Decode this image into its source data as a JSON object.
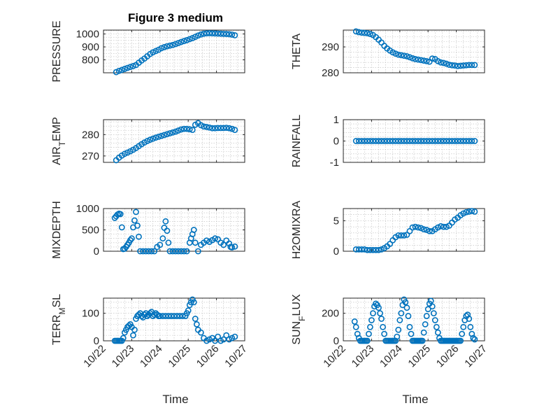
{
  "figure": {
    "title": "Figure 3 medium",
    "marker_color": "#0072BD",
    "grid": true,
    "marker": "open circle"
  },
  "chart_data": [
    {
      "type": "scatter",
      "title": "Figure 3 medium",
      "ylabel": "PRESSURE",
      "xlabel": "",
      "xlim": [
        0,
        5
      ],
      "ylim": [
        700,
        1030
      ],
      "yticks": [
        800,
        900,
        1000
      ],
      "minor_y": [
        725,
        750,
        775,
        825,
        850,
        875,
        925,
        950,
        975,
        1025
      ],
      "xticks": [
        0,
        1,
        2,
        3,
        4,
        5
      ],
      "xticklabels": [],
      "x": [
        0.45,
        0.55,
        0.65,
        0.75,
        0.85,
        0.95,
        1.05,
        1.15,
        1.25,
        1.35,
        1.45,
        1.55,
        1.65,
        1.75,
        1.85,
        1.95,
        2.05,
        2.15,
        2.25,
        2.35,
        2.45,
        2.55,
        2.65,
        2.75,
        2.85,
        2.95,
        3.05,
        3.15,
        3.25,
        3.35,
        3.45,
        3.55,
        3.65,
        3.75,
        3.85,
        3.95,
        4.05,
        4.15,
        4.25,
        4.35,
        4.45,
        4.55,
        4.65
      ],
      "y": [
        705,
        715,
        722,
        730,
        738,
        745,
        752,
        760,
        778,
        795,
        810,
        828,
        845,
        858,
        868,
        878,
        890,
        898,
        905,
        910,
        915,
        922,
        930,
        938,
        945,
        952,
        960,
        968,
        978,
        988,
        996,
        1002,
        1005,
        1006,
        1005,
        1004,
        1003,
        1002,
        1001,
        1000,
        998,
        995,
        990
      ]
    },
    {
      "type": "scatter",
      "ylabel": "THETA",
      "xlabel": "",
      "xlim": [
        0,
        5
      ],
      "ylim": [
        280,
        296.5
      ],
      "yticks": [
        280,
        290
      ],
      "minor_y": [
        282,
        284,
        286,
        288,
        292,
        294,
        296
      ],
      "xticks": [
        0,
        1,
        2,
        3,
        4,
        5
      ],
      "xticklabels": [],
      "x": [
        0.45,
        0.55,
        0.65,
        0.75,
        0.85,
        0.95,
        1.05,
        1.15,
        1.25,
        1.35,
        1.45,
        1.55,
        1.65,
        1.75,
        1.85,
        1.95,
        2.05,
        2.15,
        2.25,
        2.35,
        2.45,
        2.55,
        2.65,
        2.75,
        2.85,
        2.95,
        3.05,
        3.15,
        3.25,
        3.35,
        3.45,
        3.55,
        3.65,
        3.75,
        3.85,
        3.95,
        4.05,
        4.15,
        4.25,
        4.35,
        4.45,
        4.55,
        4.65
      ],
      "y": [
        296.0,
        295.7,
        295.5,
        295.4,
        295.3,
        295.0,
        294.6,
        293.8,
        292.8,
        291.7,
        290.4,
        289.4,
        288.6,
        287.9,
        287.4,
        287.0,
        286.8,
        286.6,
        286.4,
        286.0,
        285.6,
        285.3,
        285.1,
        284.9,
        284.7,
        284.5,
        284.3,
        285.5,
        285.3,
        284.5,
        284.0,
        283.8,
        283.5,
        283.1,
        282.9,
        282.8,
        282.6,
        282.7,
        282.8,
        282.9,
        283.0,
        283.0,
        283.0
      ]
    },
    {
      "type": "scatter",
      "ylabel": "AIR_TEMP",
      "ylabel_main": "AIR",
      "ylabel_sub": "T",
      "ylabel_rest": "EMP",
      "xlabel": "",
      "xlim": [
        0,
        5
      ],
      "ylim": [
        267,
        287
      ],
      "yticks": [
        270,
        280
      ],
      "minor_y": [
        272,
        274,
        276,
        278,
        282,
        284,
        286
      ],
      "xticks": [
        0,
        1,
        2,
        3,
        4,
        5
      ],
      "xticklabels": [],
      "x": [
        0.45,
        0.55,
        0.65,
        0.75,
        0.85,
        0.95,
        1.05,
        1.15,
        1.25,
        1.35,
        1.45,
        1.55,
        1.65,
        1.75,
        1.85,
        1.95,
        2.05,
        2.15,
        2.25,
        2.35,
        2.45,
        2.55,
        2.65,
        2.75,
        2.85,
        2.95,
        3.05,
        3.15,
        3.25,
        3.35,
        3.45,
        3.55,
        3.65,
        3.75,
        3.85,
        3.95,
        4.05,
        4.15,
        4.25,
        4.35,
        4.45,
        4.55,
        4.65
      ],
      "y": [
        268.0,
        269.2,
        270.2,
        271.0,
        271.6,
        272.2,
        272.9,
        273.7,
        274.6,
        275.5,
        276.3,
        277.0,
        277.6,
        278.1,
        278.6,
        279.0,
        279.4,
        279.8,
        280.2,
        280.6,
        281.0,
        281.4,
        281.9,
        282.4,
        282.7,
        282.7,
        282.5,
        282.2,
        284.6,
        285.4,
        284.4,
        283.8,
        283.6,
        283.3,
        283.0,
        283.0,
        283.1,
        283.1,
        283.1,
        283.2,
        283.0,
        282.7,
        282.2
      ]
    },
    {
      "type": "scatter",
      "ylabel": "RAINFALL",
      "xlabel": "",
      "xlim": [
        0,
        5
      ],
      "ylim": [
        -1,
        1
      ],
      "yticks": [
        -1,
        0,
        1
      ],
      "minor_y": [
        -0.8,
        -0.6,
        -0.4,
        -0.2,
        0.2,
        0.4,
        0.6,
        0.8
      ],
      "xticks": [
        0,
        1,
        2,
        3,
        4,
        5
      ],
      "xticklabels": [],
      "x": [
        0.45,
        0.55,
        0.65,
        0.75,
        0.85,
        0.95,
        1.05,
        1.15,
        1.25,
        1.35,
        1.45,
        1.55,
        1.65,
        1.75,
        1.85,
        1.95,
        2.05,
        2.15,
        2.25,
        2.35,
        2.45,
        2.55,
        2.65,
        2.75,
        2.85,
        2.95,
        3.05,
        3.15,
        3.25,
        3.35,
        3.45,
        3.55,
        3.65,
        3.75,
        3.85,
        3.95,
        4.05,
        4.15,
        4.25,
        4.35,
        4.45,
        4.55,
        4.65
      ],
      "y": [
        0,
        0,
        0,
        0,
        0,
        0,
        0,
        0,
        0,
        0,
        0,
        0,
        0,
        0,
        0,
        0,
        0,
        0,
        0,
        0,
        0,
        0,
        0,
        0,
        0,
        0,
        0,
        0,
        0,
        0,
        0,
        0,
        0,
        0,
        0,
        0,
        0,
        0,
        0,
        0,
        0,
        0,
        0
      ]
    },
    {
      "type": "scatter",
      "ylabel": "MIXDEPTH",
      "xlabel": "",
      "xlim": [
        0,
        5
      ],
      "ylim": [
        0,
        1000
      ],
      "yticks": [
        0,
        500,
        1000
      ],
      "minor_y": [
        100,
        200,
        300,
        400,
        600,
        700,
        800,
        900
      ],
      "xticks": [
        0,
        1,
        2,
        3,
        4,
        5
      ],
      "xticklabels": [],
      "x": [
        0.4,
        0.45,
        0.5,
        0.55,
        0.6,
        0.65,
        0.7,
        0.75,
        0.8,
        0.85,
        0.9,
        0.95,
        1.0,
        1.05,
        1.1,
        1.15,
        1.2,
        1.25,
        1.3,
        1.4,
        1.5,
        1.6,
        1.7,
        1.8,
        1.9,
        2.0,
        2.1,
        2.15,
        2.2,
        2.25,
        2.3,
        2.35,
        2.45,
        2.55,
        2.65,
        2.75,
        2.85,
        2.95,
        3.05,
        3.1,
        3.15,
        3.2,
        3.25,
        3.35,
        3.45,
        3.55,
        3.65,
        3.75,
        3.85,
        3.95,
        4.05,
        4.15,
        4.25,
        4.35,
        4.45,
        4.5,
        4.55,
        4.65
      ],
      "y": [
        780,
        820,
        860,
        880,
        870,
        560,
        50,
        60,
        100,
        150,
        200,
        260,
        300,
        560,
        720,
        920,
        600,
        340,
        0,
        0,
        0,
        0,
        0,
        0,
        100,
        150,
        300,
        550,
        700,
        480,
        200,
        0,
        0,
        0,
        0,
        0,
        0,
        0,
        200,
        300,
        400,
        500,
        200,
        0,
        150,
        200,
        250,
        220,
        260,
        300,
        280,
        200,
        150,
        250,
        180,
        100,
        90,
        110
      ]
    },
    {
      "type": "scatter",
      "ylabel": "H2OMIXRA",
      "xlabel": "",
      "xlim": [
        0,
        5
      ],
      "ylim": [
        0,
        7
      ],
      "yticks": [
        0,
        5
      ],
      "minor_y": [
        1,
        2,
        3,
        4,
        6
      ],
      "xticks": [
        0,
        1,
        2,
        3,
        4,
        5
      ],
      "xticklabels": [],
      "x": [
        0.45,
        0.55,
        0.65,
        0.75,
        0.85,
        0.95,
        1.05,
        1.15,
        1.25,
        1.35,
        1.45,
        1.55,
        1.65,
        1.75,
        1.85,
        1.95,
        2.05,
        2.15,
        2.25,
        2.35,
        2.45,
        2.55,
        2.65,
        2.75,
        2.85,
        2.95,
        3.05,
        3.15,
        3.25,
        3.35,
        3.45,
        3.55,
        3.65,
        3.75,
        3.85,
        3.95,
        4.05,
        4.15,
        4.25,
        4.35,
        4.45,
        4.55,
        4.65
      ],
      "y": [
        0.3,
        0.3,
        0.3,
        0.3,
        0.2,
        0.2,
        0.2,
        0.2,
        0.2,
        0.3,
        0.5,
        0.8,
        1.2,
        1.8,
        2.3,
        2.6,
        2.6,
        2.6,
        2.7,
        3.3,
        3.9,
        4.0,
        3.9,
        3.8,
        3.6,
        3.5,
        3.3,
        3.3,
        3.6,
        3.9,
        4.1,
        4.0,
        4.0,
        4.2,
        4.7,
        5.2,
        5.5,
        5.9,
        6.2,
        6.4,
        6.5,
        6.6,
        6.5
      ]
    },
    {
      "type": "scatter",
      "ylabel": "TERR_MSL",
      "ylabel_main": "TERR",
      "ylabel_sub": "M",
      "ylabel_rest": "SL",
      "xlabel": "Time",
      "xlim": [
        0,
        5
      ],
      "ylim": [
        0,
        155
      ],
      "yticks": [
        0,
        100
      ],
      "minor_y": [
        20,
        40,
        60,
        80,
        120,
        140
      ],
      "xticks": [
        0,
        1,
        2,
        3,
        4,
        5
      ],
      "xticklabels": [
        "10/22",
        "10/23",
        "10/24",
        "10/25",
        "10/26",
        "10/27"
      ],
      "x": [
        0.4,
        0.45,
        0.5,
        0.55,
        0.6,
        0.65,
        0.7,
        0.75,
        0.8,
        0.85,
        0.9,
        0.95,
        1.0,
        1.05,
        1.1,
        1.15,
        1.2,
        1.25,
        1.3,
        1.35,
        1.4,
        1.45,
        1.5,
        1.55,
        1.6,
        1.65,
        1.7,
        1.75,
        1.8,
        1.85,
        1.9,
        1.95,
        2.0,
        2.1,
        2.2,
        2.3,
        2.4,
        2.5,
        2.6,
        2.7,
        2.8,
        2.9,
        2.95,
        3.0,
        3.05,
        3.1,
        3.15,
        3.2,
        3.25,
        3.3,
        3.35,
        3.45,
        3.55,
        3.65,
        3.75,
        3.85,
        3.95,
        4.05,
        4.15,
        4.25,
        4.35,
        4.45,
        4.55,
        4.65
      ],
      "y": [
        0,
        0,
        0,
        0,
        0,
        0,
        10,
        30,
        40,
        50,
        55,
        60,
        50,
        20,
        40,
        80,
        90,
        95,
        100,
        90,
        85,
        95,
        100,
        90,
        95,
        100,
        105,
        90,
        95,
        100,
        95,
        90,
        90,
        90,
        90,
        90,
        90,
        90,
        90,
        90,
        90,
        90,
        100,
        110,
        130,
        140,
        150,
        140,
        80,
        60,
        40,
        30,
        10,
        0,
        5,
        10,
        0,
        15,
        0,
        5,
        20,
        5,
        10,
        15
      ]
    },
    {
      "type": "scatter",
      "ylabel": "SUN_FLUX",
      "ylabel_main": "SUN",
      "ylabel_sub": "F",
      "ylabel_rest": "LUX",
      "xlabel": "Time",
      "xlim": [
        0,
        5
      ],
      "ylim": [
        0,
        310
      ],
      "yticks": [
        0,
        200
      ],
      "minor_y": [
        40,
        80,
        120,
        160,
        240,
        280
      ],
      "xticks": [
        0,
        1,
        2,
        3,
        4,
        5
      ],
      "xticklabels": [
        "10/22",
        "10/23",
        "10/24",
        "10/25",
        "10/26",
        "10/27"
      ],
      "x": [
        0.4,
        0.45,
        0.5,
        0.55,
        0.6,
        0.65,
        0.7,
        0.75,
        0.8,
        0.85,
        0.9,
        0.95,
        1.0,
        1.05,
        1.1,
        1.15,
        1.2,
        1.25,
        1.3,
        1.35,
        1.4,
        1.45,
        1.5,
        1.55,
        1.6,
        1.65,
        1.7,
        1.75,
        1.8,
        1.85,
        1.9,
        1.95,
        2.0,
        2.05,
        2.1,
        2.15,
        2.2,
        2.25,
        2.3,
        2.35,
        2.4,
        2.45,
        2.5,
        2.55,
        2.6,
        2.65,
        2.7,
        2.75,
        2.8,
        2.85,
        2.9,
        2.95,
        3.0,
        3.05,
        3.1,
        3.15,
        3.2,
        3.25,
        3.3,
        3.35,
        3.4,
        3.45,
        3.5,
        3.55,
        3.6,
        3.65,
        3.7,
        3.75,
        3.8,
        3.85,
        3.9,
        3.95,
        4.0,
        4.05,
        4.1,
        4.15,
        4.2,
        4.25,
        4.3,
        4.35,
        4.4,
        4.45,
        4.5,
        4.55,
        4.6,
        4.65
      ],
      "y": [
        140,
        100,
        50,
        20,
        0,
        0,
        0,
        0,
        0,
        0,
        50,
        100,
        150,
        200,
        250,
        270,
        260,
        240,
        200,
        160,
        100,
        50,
        0,
        0,
        0,
        0,
        0,
        0,
        0,
        0,
        30,
        80,
        150,
        200,
        260,
        300,
        280,
        240,
        180,
        100,
        50,
        0,
        0,
        0,
        0,
        0,
        0,
        0,
        0,
        60,
        120,
        180,
        230,
        270,
        290,
        250,
        200,
        150,
        100,
        60,
        20,
        0,
        0,
        0,
        0,
        0,
        0,
        0,
        0,
        0,
        0,
        0,
        0,
        0,
        0,
        0,
        50,
        100,
        150,
        180,
        190,
        160,
        100,
        50,
        20,
        10
      ]
    }
  ]
}
